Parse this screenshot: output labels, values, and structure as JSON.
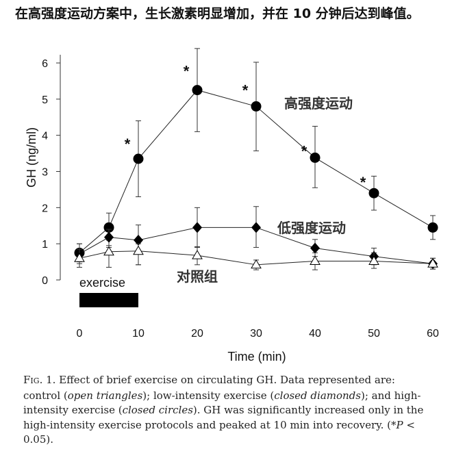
{
  "title": "在高强度运动方案中，生长激素明显增加，并在 10 分钟后达到峰值。",
  "chart_data": {
    "type": "line",
    "xlabel": "Time (min)",
    "ylabel": "GH (ng/ml)",
    "xlim": [
      0,
      60
    ],
    "ylim": [
      0,
      6
    ],
    "xticks": [
      0,
      10,
      20,
      30,
      40,
      50,
      60
    ],
    "yticks": [
      0,
      1,
      2,
      3,
      4,
      5,
      6
    ],
    "grid": false,
    "x": [
      0,
      5,
      10,
      20,
      30,
      40,
      50,
      60
    ],
    "series": [
      {
        "name": "高强度运动",
        "marker": "closed-circle",
        "values": [
          0.75,
          1.45,
          3.35,
          5.25,
          4.8,
          3.38,
          2.4,
          1.45
        ],
        "err_low": [
          0.5,
          1.1,
          2.3,
          4.1,
          3.57,
          2.55,
          1.93,
          1.12
        ],
        "err_high": [
          1.0,
          1.85,
          4.4,
          6.4,
          6.02,
          4.25,
          2.87,
          1.78
        ],
        "significant": [
          false,
          false,
          true,
          true,
          true,
          true,
          true,
          false
        ]
      },
      {
        "name": "低强度运动",
        "marker": "closed-diamond",
        "values": [
          0.72,
          1.18,
          1.1,
          1.45,
          1.45,
          0.88,
          0.65,
          0.45
        ],
        "err_low": [
          0.45,
          0.9,
          0.42,
          0.9,
          0.9,
          0.65,
          0.42,
          0.3
        ],
        "err_high": [
          1.0,
          1.4,
          1.52,
          2.0,
          2.03,
          1.12,
          0.88,
          0.6
        ]
      },
      {
        "name": "对照组",
        "marker": "open-triangle",
        "values": [
          0.6,
          0.78,
          0.8,
          0.68,
          0.42,
          0.52,
          0.52,
          0.45
        ],
        "err_low": [
          0.35,
          0.35,
          0.42,
          0.42,
          0.28,
          0.28,
          0.32,
          0.3
        ],
        "err_high": [
          0.85,
          0.95,
          1.0,
          0.92,
          0.55,
          0.75,
          0.75,
          0.6
        ]
      }
    ],
    "annotations": {
      "star": "*",
      "exercise_label": "exercise",
      "exercise_period": [
        0,
        10
      ]
    }
  },
  "caption": [
    {
      "text": "F",
      "italic": false
    },
    {
      "text": "IG",
      "italic": false,
      "small": true
    },
    {
      "text": ". 1. Effect of brief exercise on circulating GH. Data represented are: control (",
      "italic": false
    },
    {
      "text": "open triangles",
      "italic": true
    },
    {
      "text": "); low-intensity exercise (",
      "italic": false
    },
    {
      "text": "closed diamonds",
      "italic": true
    },
    {
      "text": "); and high-intensity exercise (",
      "italic": false
    },
    {
      "text": "closed circles",
      "italic": true
    },
    {
      "text": "). GH was significantly increased only in the high-intensity exercise protocols and peaked at 10 min into recovery. (*",
      "italic": false
    },
    {
      "text": "P",
      "italic": true
    },
    {
      "text": " < 0.05).",
      "italic": false
    }
  ]
}
